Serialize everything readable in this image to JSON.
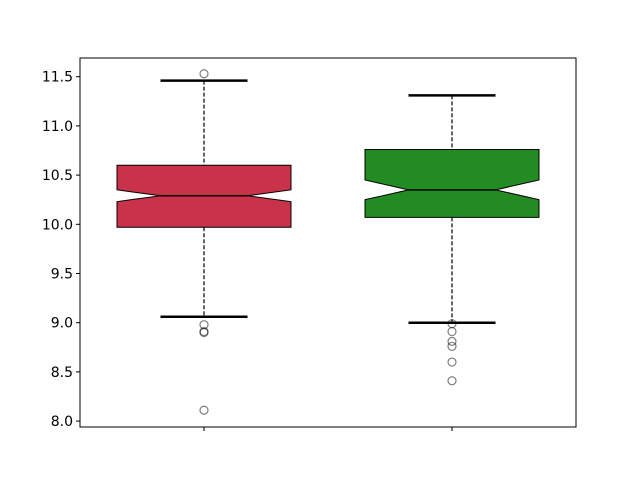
{
  "chart_data": {
    "type": "boxplot",
    "notched": true,
    "title": "",
    "xlabel": "",
    "ylabel": "",
    "ylim": [
      7.94,
      11.69
    ],
    "yticks": [
      "8.0",
      "8.5",
      "9.0",
      "9.5",
      "10.0",
      "10.5",
      "11.0",
      "11.5"
    ],
    "xtick_labels": [
      "",
      ""
    ],
    "grid": false,
    "series": [
      {
        "color": "#c8334a",
        "whisker_low": 9.06,
        "q1": 9.97,
        "notch_low": 10.23,
        "median": 10.29,
        "notch_high": 10.35,
        "q3": 10.6,
        "whisker_high": 11.46,
        "fliers": [
          11.53,
          8.98,
          8.91,
          8.9,
          8.11
        ]
      },
      {
        "color": "#228b22",
        "whisker_low": 9.0,
        "q1": 10.07,
        "notch_low": 10.25,
        "median": 10.35,
        "notch_high": 10.45,
        "q3": 10.76,
        "whisker_high": 11.31,
        "fliers": [
          8.99,
          8.91,
          8.81,
          8.76,
          8.6,
          8.41
        ]
      }
    ]
  }
}
